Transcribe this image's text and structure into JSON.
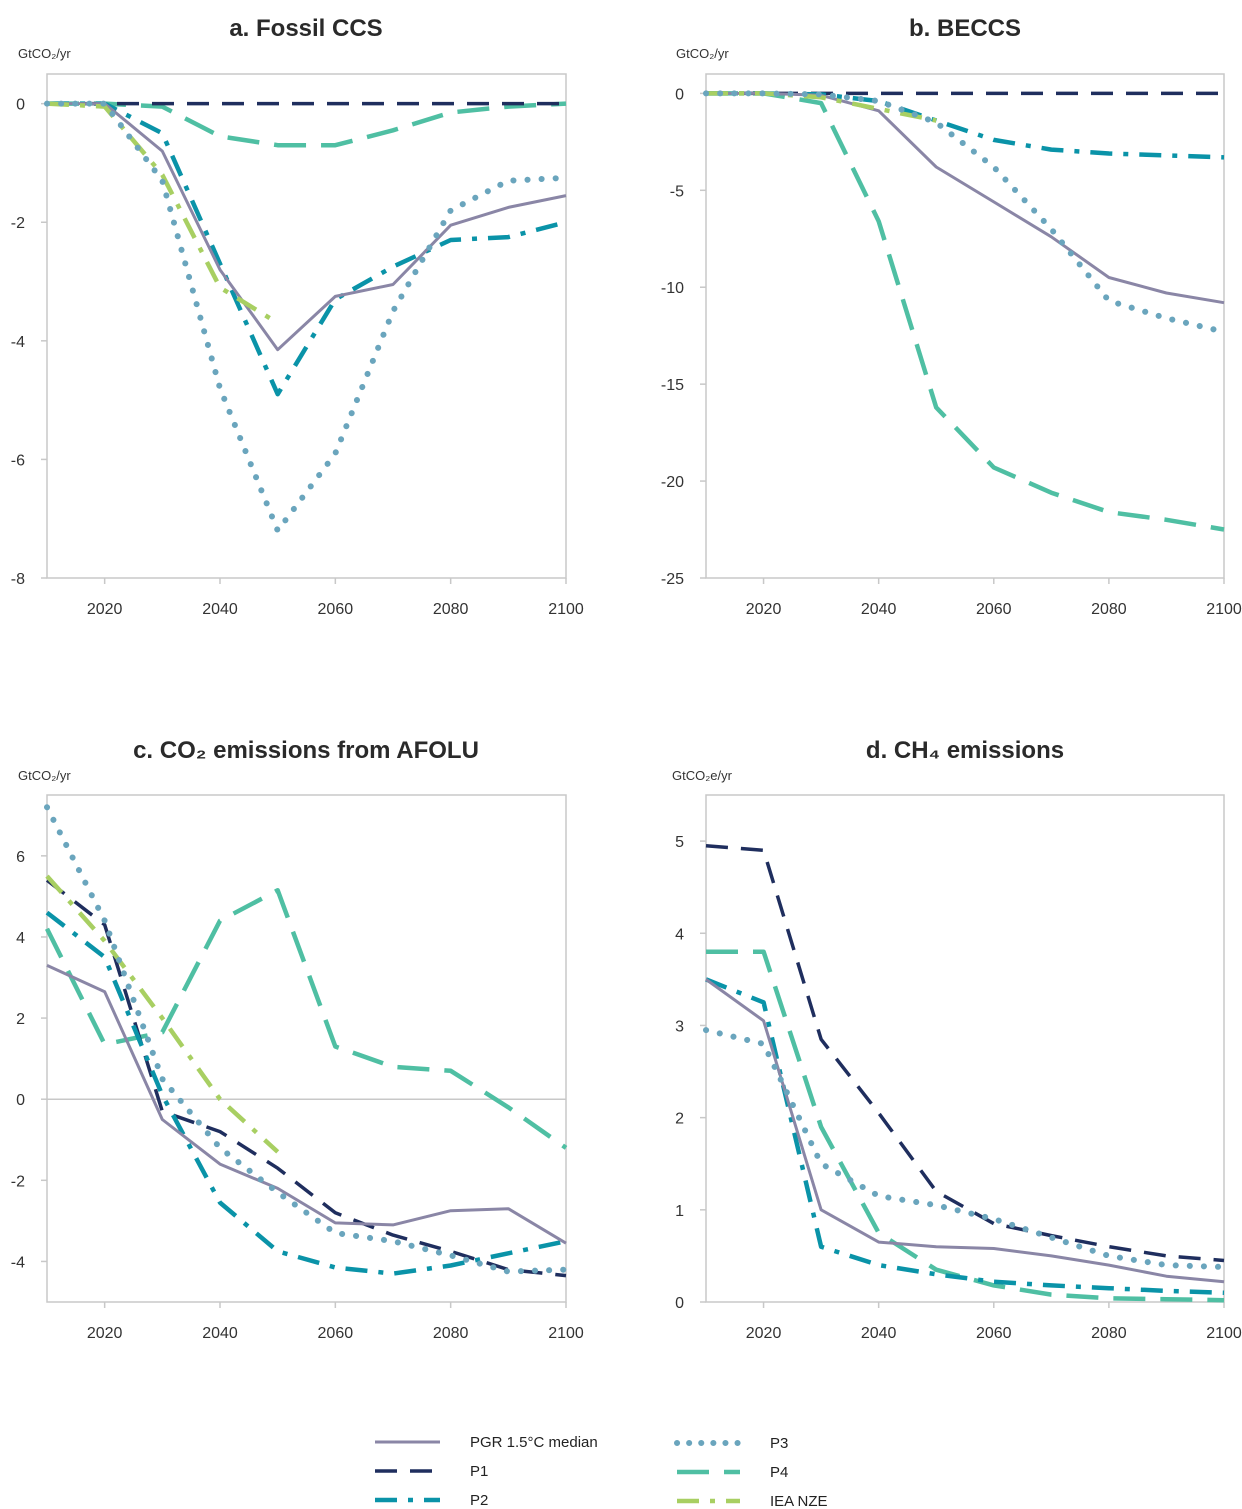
{
  "colors": {
    "median": "#8a86a6",
    "P1": "#1f2e5e",
    "P2": "#0a93a8",
    "P3": "#6aa5bd",
    "P4": "#4fbfa3",
    "IEA NZE": "#a8cf62",
    "axis": "#c8c8c8"
  },
  "legend": [
    {
      "key": "median",
      "label": "PGR 1.5°C median"
    },
    {
      "key": "P1",
      "label": "P1"
    },
    {
      "key": "P2",
      "label": "P2"
    },
    {
      "key": "P3",
      "label": "P3"
    },
    {
      "key": "P4",
      "label": "P4"
    },
    {
      "key": "IEA NZE",
      "label": "IEA NZE"
    }
  ],
  "chart_data": [
    {
      "type": "line",
      "title": "a. Fossil CCS",
      "unit_label": "GtCO₂/yr",
      "xlim": [
        2010,
        2100
      ],
      "ylim": [
        -8,
        0.5
      ],
      "xticks": [
        "2020",
        "2040",
        "2060",
        "2080",
        "2100"
      ],
      "yticks": [
        "0",
        "-2",
        "-4",
        "-6",
        "-8"
      ],
      "grid": false,
      "series": [
        {
          "key": "median",
          "name": "PGR 1.5°C median",
          "x": [
            2010,
            2020,
            2030,
            2040,
            2050,
            2060,
            2070,
            2080,
            2090,
            2100
          ],
          "y": [
            0,
            0,
            -0.8,
            -2.8,
            -4.15,
            -3.25,
            -3.05,
            -2.05,
            -1.75,
            -1.55
          ]
        },
        {
          "key": "P1",
          "name": "P1",
          "x": [
            2010,
            2020,
            2030,
            2040,
            2050,
            2060,
            2070,
            2080,
            2090,
            2100
          ],
          "y": [
            0,
            0,
            0,
            0,
            0,
            0,
            0,
            0,
            0,
            0
          ]
        },
        {
          "key": "P2",
          "name": "P2",
          "x": [
            2010,
            2020,
            2030,
            2040,
            2050,
            2060,
            2070,
            2080,
            2090,
            2100
          ],
          "y": [
            0,
            0,
            -0.5,
            -2.7,
            -4.9,
            -3.3,
            -2.75,
            -2.3,
            -2.25,
            -2.0
          ]
        },
        {
          "key": "P3",
          "name": "P3",
          "x": [
            2010,
            2020,
            2030,
            2040,
            2050,
            2060,
            2070,
            2080,
            2090,
            2100
          ],
          "y": [
            0,
            0,
            -1.3,
            -4.8,
            -7.2,
            -5.9,
            -3.5,
            -1.8,
            -1.3,
            -1.25
          ]
        },
        {
          "key": "P4",
          "name": "P4",
          "x": [
            2010,
            2020,
            2030,
            2040,
            2050,
            2060,
            2070,
            2080,
            2090,
            2100
          ],
          "y": [
            0,
            0,
            -0.05,
            -0.55,
            -0.7,
            -0.7,
            -0.45,
            -0.15,
            -0.05,
            0
          ]
        },
        {
          "key": "IEA NZE",
          "name": "IEA NZE",
          "x": [
            2010,
            2020,
            2030,
            2040,
            2050
          ],
          "y": [
            0,
            -0.05,
            -1.2,
            -3.1,
            -3.7
          ]
        }
      ]
    },
    {
      "type": "line",
      "title": "b. BECCS",
      "unit_label": "GtCO₂/yr",
      "xlim": [
        2010,
        2100
      ],
      "ylim": [
        -25,
        1
      ],
      "xticks": [
        "2020",
        "2040",
        "2060",
        "2080",
        "2100"
      ],
      "yticks": [
        "0",
        "-5",
        "-10",
        "-15",
        "-20",
        "-25"
      ],
      "grid": false,
      "series": [
        {
          "key": "median",
          "name": "PGR 1.5°C median",
          "x": [
            2010,
            2020,
            2030,
            2040,
            2050,
            2060,
            2070,
            2080,
            2090,
            2100
          ],
          "y": [
            0,
            0,
            -0.1,
            -0.9,
            -3.8,
            -5.6,
            -7.4,
            -9.5,
            -10.3,
            -10.8
          ]
        },
        {
          "key": "P1",
          "name": "P1",
          "x": [
            2010,
            2020,
            2030,
            2040,
            2050,
            2060,
            2070,
            2080,
            2090,
            2100
          ],
          "y": [
            0,
            0,
            0,
            0,
            0,
            0,
            0,
            0,
            0,
            0
          ]
        },
        {
          "key": "P2",
          "name": "P2",
          "x": [
            2010,
            2020,
            2030,
            2040,
            2050,
            2060,
            2070,
            2080,
            2090,
            2100
          ],
          "y": [
            0,
            0,
            -0.05,
            -0.4,
            -1.4,
            -2.4,
            -2.9,
            -3.1,
            -3.2,
            -3.3
          ]
        },
        {
          "key": "P3",
          "name": "P3",
          "x": [
            2010,
            2020,
            2030,
            2040,
            2050,
            2060,
            2070,
            2080,
            2090,
            2100
          ],
          "y": [
            0,
            0,
            -0.05,
            -0.4,
            -1.5,
            -3.8,
            -7.0,
            -10.7,
            -11.6,
            -12.3
          ]
        },
        {
          "key": "P4",
          "name": "P4",
          "x": [
            2010,
            2020,
            2030,
            2040,
            2050,
            2060,
            2070,
            2080,
            2090,
            2100
          ],
          "y": [
            0,
            0,
            -0.5,
            -6.6,
            -16.2,
            -19.3,
            -20.6,
            -21.6,
            -22.0,
            -22.5
          ]
        },
        {
          "key": "IEA NZE",
          "name": "IEA NZE",
          "x": [
            2010,
            2020,
            2030,
            2040,
            2050
          ],
          "y": [
            0,
            0,
            -0.2,
            -0.8,
            -1.4
          ]
        }
      ]
    },
    {
      "type": "line",
      "title": "c. CO₂ emissions from AFOLU",
      "unit_label": "GtCO₂/yr",
      "xlim": [
        2010,
        2100
      ],
      "ylim": [
        -5,
        7.5
      ],
      "xticks": [
        "2020",
        "2040",
        "2060",
        "2080",
        "2100"
      ],
      "yticks": [
        "6",
        "4",
        "2",
        "0",
        "-2",
        "-4"
      ],
      "grid": false,
      "series": [
        {
          "key": "median",
          "name": "PGR 1.5°C median",
          "x": [
            2010,
            2020,
            2030,
            2040,
            2050,
            2060,
            2070,
            2080,
            2090,
            2100
          ],
          "y": [
            3.3,
            2.65,
            -0.5,
            -1.6,
            -2.2,
            -3.05,
            -3.1,
            -2.75,
            -2.7,
            -3.55
          ]
        },
        {
          "key": "P1",
          "name": "P1",
          "x": [
            2010,
            2020,
            2030,
            2040,
            2050,
            2060,
            2070,
            2080,
            2090,
            2100
          ],
          "y": [
            5.4,
            4.3,
            -0.3,
            -0.8,
            -1.7,
            -2.8,
            -3.35,
            -3.75,
            -4.2,
            -4.35
          ]
        },
        {
          "key": "P2",
          "name": "P2",
          "x": [
            2010,
            2020,
            2030,
            2040,
            2050,
            2060,
            2070,
            2080,
            2090,
            2100
          ],
          "y": [
            4.6,
            3.5,
            0.1,
            -2.55,
            -3.75,
            -4.15,
            -4.3,
            -4.1,
            -3.8,
            -3.5
          ]
        },
        {
          "key": "P3",
          "name": "P3",
          "x": [
            2010,
            2020,
            2030,
            2040,
            2050,
            2060,
            2070,
            2080,
            2090,
            2100
          ],
          "y": [
            7.2,
            4.4,
            0.5,
            -1.2,
            -2.3,
            -3.3,
            -3.5,
            -3.85,
            -4.25,
            -4.2
          ]
        },
        {
          "key": "P4",
          "name": "P4",
          "x": [
            2010,
            2020,
            2030,
            2040,
            2050,
            2060,
            2070,
            2080,
            2090,
            2100
          ],
          "y": [
            4.2,
            1.35,
            1.65,
            4.4,
            5.15,
            1.3,
            0.8,
            0.7,
            -0.2,
            -1.2
          ]
        },
        {
          "key": "IEA NZE",
          "name": "IEA NZE",
          "x": [
            2010,
            2020,
            2030,
            2040,
            2050
          ],
          "y": [
            5.5,
            3.9,
            2.0,
            0.0,
            -1.3
          ]
        }
      ]
    },
    {
      "type": "line",
      "title": "d. CH₄ emissions",
      "unit_label": "GtCO₂e/yr",
      "xlim": [
        2010,
        2100
      ],
      "ylim": [
        0,
        5.5
      ],
      "xticks": [
        "2020",
        "2040",
        "2060",
        "2080",
        "2100"
      ],
      "yticks": [
        "5",
        "4",
        "3",
        "2",
        "1",
        "0"
      ],
      "grid": false,
      "series": [
        {
          "key": "median",
          "name": "PGR 1.5°C median",
          "x": [
            2010,
            2020,
            2030,
            2040,
            2050,
            2060,
            2070,
            2080,
            2090,
            2100
          ],
          "y": [
            3.5,
            3.05,
            1.0,
            0.65,
            0.6,
            0.58,
            0.5,
            0.4,
            0.28,
            0.22
          ]
        },
        {
          "key": "P1",
          "name": "P1",
          "x": [
            2010,
            2020,
            2030,
            2040,
            2050,
            2060,
            2070,
            2080,
            2090,
            2100
          ],
          "y": [
            4.95,
            4.9,
            2.85,
            2.05,
            1.2,
            0.85,
            0.72,
            0.6,
            0.5,
            0.45
          ]
        },
        {
          "key": "P2",
          "name": "P2",
          "x": [
            2010,
            2020,
            2030,
            2040,
            2050,
            2060,
            2070,
            2080,
            2090,
            2100
          ],
          "y": [
            3.5,
            3.25,
            0.6,
            0.4,
            0.3,
            0.22,
            0.18,
            0.15,
            0.12,
            0.1
          ]
        },
        {
          "key": "P3",
          "name": "P3",
          "x": [
            2010,
            2020,
            2030,
            2040,
            2050,
            2060,
            2070,
            2080,
            2090,
            2100
          ],
          "y": [
            2.95,
            2.8,
            1.5,
            1.15,
            1.05,
            0.9,
            0.7,
            0.5,
            0.4,
            0.38
          ]
        },
        {
          "key": "P4",
          "name": "P4",
          "x": [
            2010,
            2020,
            2030,
            2040,
            2050,
            2060,
            2070,
            2080,
            2090,
            2100
          ],
          "y": [
            3.8,
            3.8,
            1.9,
            0.75,
            0.35,
            0.18,
            0.08,
            0.04,
            0.03,
            0.02
          ]
        }
      ]
    }
  ]
}
